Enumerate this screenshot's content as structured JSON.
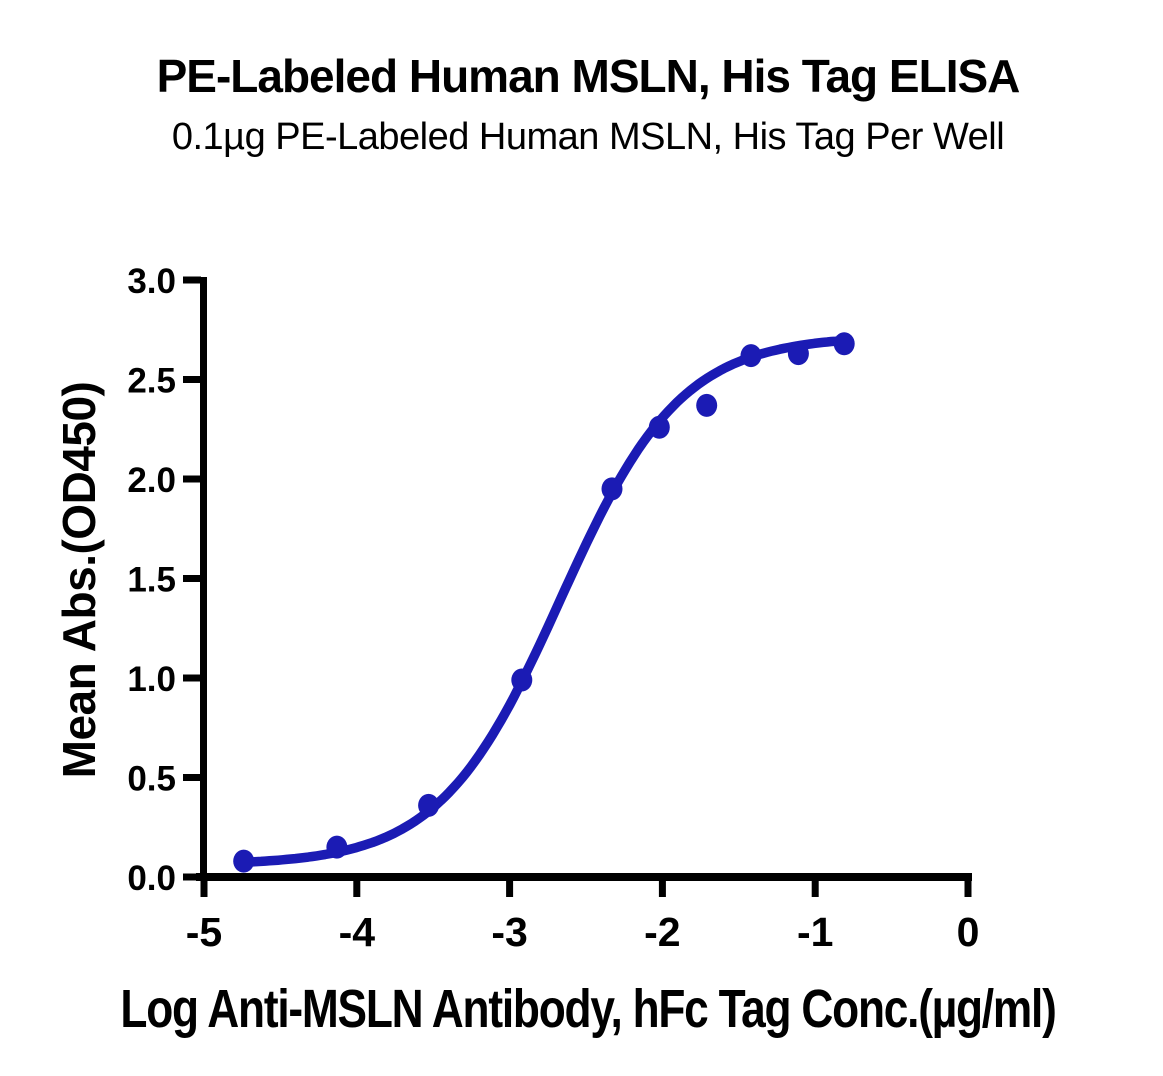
{
  "figure": {
    "title": "PE-Labeled Human MSLN, His Tag ELISA",
    "subtitle": "0.1µg PE-Labeled Human MSLN, His Tag Per Well"
  },
  "chart_data": {
    "type": "scatter",
    "title": "PE-Labeled Human MSLN, His Tag ELISA",
    "subtitle": "0.1µg PE-Labeled Human MSLN, His Tag Per Well",
    "xlabel": "Log Anti-MSLN Antibody, hFc Tag Conc.(µg/ml)",
    "ylabel": "Mean Abs.(OD450)",
    "xlim": [
      -5,
      0
    ],
    "ylim": [
      0,
      3
    ],
    "x_ticks": [
      -5,
      -4,
      -3,
      -2,
      -1,
      0
    ],
    "x_tick_labels": [
      "-5",
      "-4",
      "-3",
      "-2",
      "-1",
      "0"
    ],
    "y_ticks": [
      0,
      0.5,
      1,
      1.5,
      2,
      2.5,
      3
    ],
    "y_tick_labels": [
      "0.0",
      "0.5",
      "1.0",
      "1.5",
      "2.0",
      "2.5",
      "3.0"
    ],
    "grid": false,
    "legend": "none",
    "points": {
      "x": [
        -4.74,
        -4.13,
        -3.53,
        -2.92,
        -2.33,
        -2.02,
        -1.71,
        -1.42,
        -1.11,
        -0.81
      ],
      "y": [
        0.08,
        0.15,
        0.36,
        0.99,
        1.95,
        2.26,
        2.37,
        2.62,
        2.63,
        2.68
      ]
    },
    "fit_curve": {
      "model": "4PL",
      "bottom": 0.06,
      "top": 2.72,
      "log_ec50": -2.67,
      "hill": 1.1,
      "x_start": -4.74,
      "x_end": -0.81
    },
    "colors": {
      "series": "#1b1bb4",
      "axis": "#000000",
      "text": "#000000",
      "background": "#ffffff"
    }
  }
}
